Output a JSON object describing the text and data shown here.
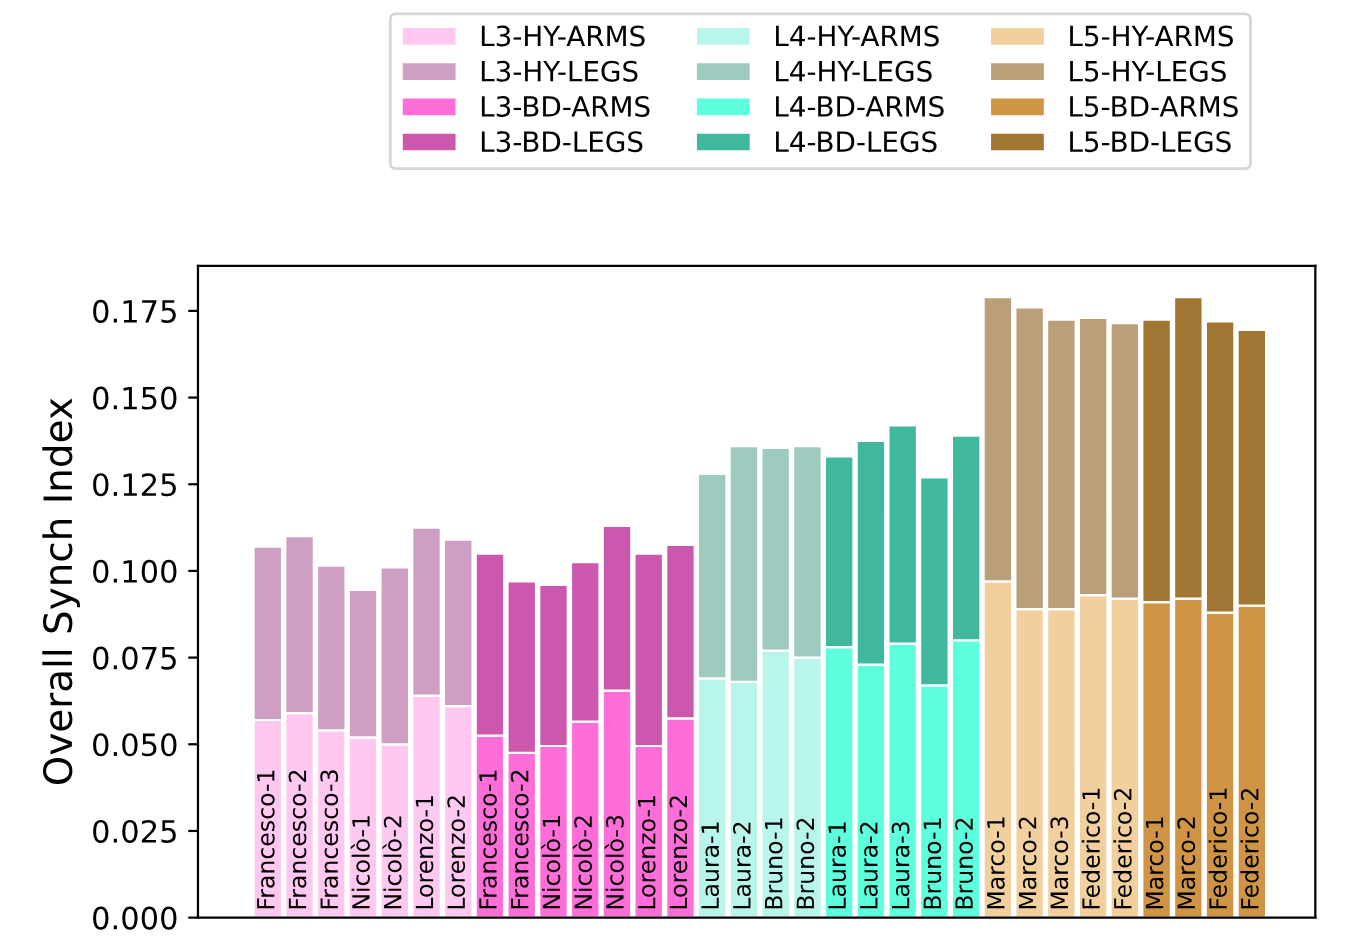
{
  "chart_data": {
    "type": "bar",
    "stacked": true,
    "ylabel": "Overall Synch Index",
    "legend": "top",
    "grid": false,
    "categories": [
      "Francesco-1",
      "Francesco-2",
      "Francesco-3",
      "Nicolò-1",
      "Nicolò-2",
      "Lorenzo-1",
      "Lorenzo-2",
      "Francesco-1",
      "Francesco-2",
      "Nicolò-1",
      "Nicolò-2",
      "Nicolò-3",
      "Lorenzo-1",
      "Lorenzo-2",
      "Laura-1",
      "Laura-2",
      "Bruno-1",
      "Bruno-2",
      "Laura-1",
      "Laura-2",
      "Laura-3",
      "Bruno-1",
      "Bruno-2",
      "Marco-1",
      "Marco-2",
      "Marco-3",
      "Federico-1",
      "Federico-2",
      "Marco-1",
      "Marco-2",
      "Federico-1",
      "Federico-2"
    ],
    "ylim": [
      0,
      0.188
    ],
    "yticks": [
      {
        "value": 0,
        "label": "0.000"
      },
      {
        "value": 0.025,
        "label": "0.025"
      },
      {
        "value": 0.05,
        "label": "0.050"
      },
      {
        "value": 0.075,
        "label": "0.075"
      },
      {
        "value": 0.1,
        "label": "0.100"
      },
      {
        "value": 0.125,
        "label": "0.125"
      },
      {
        "value": 0.15,
        "label": "0.150"
      },
      {
        "value": 0.175,
        "label": "0.175"
      }
    ],
    "series": [
      {
        "name": "L3-HY-ARMS",
        "color": "#ffc8f0",
        "values": [
          0.057,
          0.059,
          0.054,
          0.052,
          0.05,
          0.064,
          0.061,
          null,
          null,
          null,
          null,
          null,
          null,
          null,
          null,
          null,
          null,
          null,
          null,
          null,
          null,
          null,
          null,
          null,
          null,
          null,
          null,
          null,
          null,
          null,
          null,
          null
        ]
      },
      {
        "name": "L3-HY-LEGS",
        "color": "#cf9fc3",
        "values": [
          0.05,
          0.051,
          0.0475,
          0.0425,
          0.051,
          0.0485,
          0.048,
          null,
          null,
          null,
          null,
          null,
          null,
          null,
          null,
          null,
          null,
          null,
          null,
          null,
          null,
          null,
          null,
          null,
          null,
          null,
          null,
          null,
          null,
          null,
          null,
          null
        ]
      },
      {
        "name": "L3-BD-ARMS",
        "color": "#ff6ed8",
        "values": [
          null,
          null,
          null,
          null,
          null,
          null,
          null,
          0.0525,
          0.0475,
          0.0495,
          0.0565,
          0.0655,
          0.0495,
          0.0575,
          null,
          null,
          null,
          null,
          null,
          null,
          null,
          null,
          null,
          null,
          null,
          null,
          null,
          null,
          null,
          null,
          null,
          null
        ]
      },
      {
        "name": "L3-BD-LEGS",
        "color": "#cc58ae",
        "values": [
          null,
          null,
          null,
          null,
          null,
          null,
          null,
          0.0525,
          0.0495,
          0.0465,
          0.046,
          0.0475,
          0.0555,
          0.05,
          null,
          null,
          null,
          null,
          null,
          null,
          null,
          null,
          null,
          null,
          null,
          null,
          null,
          null,
          null,
          null,
          null,
          null
        ]
      },
      {
        "name": "L4-HY-ARMS",
        "color": "#b8f5ea",
        "values": [
          null,
          null,
          null,
          null,
          null,
          null,
          null,
          null,
          null,
          null,
          null,
          null,
          null,
          null,
          0.069,
          0.068,
          0.077,
          0.075,
          null,
          null,
          null,
          null,
          null,
          null,
          null,
          null,
          null,
          null,
          null,
          null,
          null,
          null
        ]
      },
      {
        "name": "L4-HY-LEGS",
        "color": "#9ecbbf",
        "values": [
          null,
          null,
          null,
          null,
          null,
          null,
          null,
          null,
          null,
          null,
          null,
          null,
          null,
          null,
          0.059,
          0.068,
          0.0585,
          0.061,
          null,
          null,
          null,
          null,
          null,
          null,
          null,
          null,
          null,
          null,
          null,
          null,
          null,
          null
        ]
      },
      {
        "name": "L4-BD-ARMS",
        "color": "#5effdc",
        "values": [
          null,
          null,
          null,
          null,
          null,
          null,
          null,
          null,
          null,
          null,
          null,
          null,
          null,
          null,
          null,
          null,
          null,
          null,
          0.078,
          0.073,
          0.079,
          0.067,
          0.08,
          null,
          null,
          null,
          null,
          null,
          null,
          null,
          null,
          null
        ]
      },
      {
        "name": "L4-BD-LEGS",
        "color": "#40b89e",
        "values": [
          null,
          null,
          null,
          null,
          null,
          null,
          null,
          null,
          null,
          null,
          null,
          null,
          null,
          null,
          null,
          null,
          null,
          null,
          0.055,
          0.0645,
          0.063,
          0.06,
          0.059,
          null,
          null,
          null,
          null,
          null,
          null,
          null,
          null,
          null
        ]
      },
      {
        "name": "L5-HY-ARMS",
        "color": "#f2d09e",
        "values": [
          null,
          null,
          null,
          null,
          null,
          null,
          null,
          null,
          null,
          null,
          null,
          null,
          null,
          null,
          null,
          null,
          null,
          null,
          null,
          null,
          null,
          null,
          null,
          0.097,
          0.089,
          0.089,
          0.093,
          0.092,
          null,
          null,
          null,
          null
        ]
      },
      {
        "name": "L5-HY-LEGS",
        "color": "#b9a079",
        "values": [
          null,
          null,
          null,
          null,
          null,
          null,
          null,
          null,
          null,
          null,
          null,
          null,
          null,
          null,
          null,
          null,
          null,
          null,
          null,
          null,
          null,
          null,
          null,
          0.082,
          0.087,
          0.0835,
          0.08,
          0.0795,
          null,
          null,
          null,
          null
        ]
      },
      {
        "name": "L5-BD-ARMS",
        "color": "#cf9545",
        "values": [
          null,
          null,
          null,
          null,
          null,
          null,
          null,
          null,
          null,
          null,
          null,
          null,
          null,
          null,
          null,
          null,
          null,
          null,
          null,
          null,
          null,
          null,
          null,
          null,
          null,
          null,
          null,
          null,
          0.091,
          0.092,
          0.088,
          0.09
        ]
      },
      {
        "name": "L5-BD-LEGS",
        "color": "#a07632",
        "values": [
          null,
          null,
          null,
          null,
          null,
          null,
          null,
          null,
          null,
          null,
          null,
          null,
          null,
          null,
          null,
          null,
          null,
          null,
          null,
          null,
          null,
          null,
          null,
          null,
          null,
          null,
          null,
          null,
          0.0815,
          0.087,
          0.084,
          0.0795
        ]
      }
    ]
  }
}
